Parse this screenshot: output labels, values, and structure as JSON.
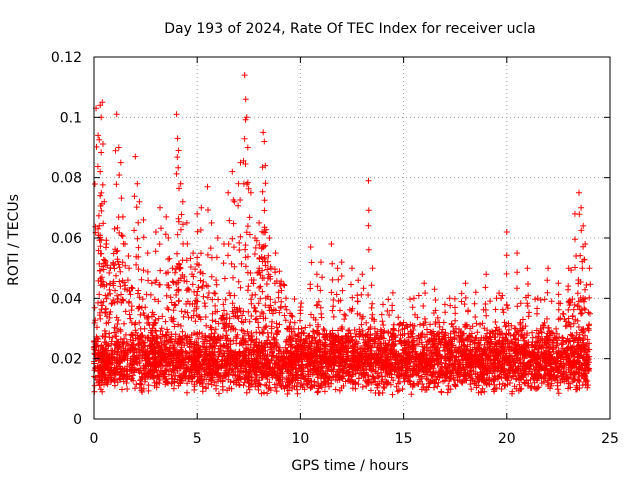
{
  "chart_data": {
    "type": "scatter",
    "title": "Day 193 of 2024, Rate Of TEC Index for receiver ucla",
    "xlabel": "GPS time / hours",
    "ylabel": "ROTI / TECUs",
    "xlim": [
      0,
      25
    ],
    "ylim": [
      0,
      0.12
    ],
    "x_ticks": [
      0,
      5,
      10,
      15,
      20,
      25
    ],
    "x_tick_labels": [
      "0",
      "5",
      "10",
      "15",
      "20",
      "25"
    ],
    "y_ticks": [
      0,
      0.02,
      0.04,
      0.06,
      0.08,
      0.1,
      0.12
    ],
    "y_tick_labels": [
      "0",
      "0.02",
      "0.04",
      "0.06",
      "0.08",
      "0.1",
      "0.12"
    ],
    "grid": true,
    "marker": "plus",
    "color": "#ff0000",
    "series": [
      {
        "name": "ROTI",
        "envelope_note": "Dense point cloud; baseline ~0.008-0.03 TECU all day; bursts above listed as sampled points",
        "points": [
          [
            0.1,
            0.103
          ],
          [
            0.2,
            0.094
          ],
          [
            0.3,
            0.104
          ],
          [
            0.35,
            0.1
          ],
          [
            0.4,
            0.105
          ],
          [
            0.3,
            0.082
          ],
          [
            0.3,
            0.074
          ],
          [
            0.5,
            0.072
          ],
          [
            0.2,
            0.063
          ],
          [
            0.6,
            0.058
          ],
          [
            0.8,
            0.05
          ],
          [
            1.0,
            0.063
          ],
          [
            1.1,
            0.101
          ],
          [
            1.2,
            0.09
          ],
          [
            1.3,
            0.085
          ],
          [
            1.4,
            0.067
          ],
          [
            1.5,
            0.058
          ],
          [
            1.7,
            0.05
          ],
          [
            2.0,
            0.087
          ],
          [
            2.1,
            0.078
          ],
          [
            2.2,
            0.072
          ],
          [
            2.4,
            0.066
          ],
          [
            2.6,
            0.055
          ],
          [
            2.8,
            0.045
          ],
          [
            3.0,
            0.062
          ],
          [
            3.2,
            0.07
          ],
          [
            3.5,
            0.067
          ],
          [
            3.6,
            0.06
          ],
          [
            3.8,
            0.05
          ],
          [
            4.0,
            0.101
          ],
          [
            4.05,
            0.093
          ],
          [
            4.1,
            0.089
          ],
          [
            4.2,
            0.078
          ],
          [
            4.3,
            0.072
          ],
          [
            4.5,
            0.065
          ],
          [
            4.8,
            0.055
          ],
          [
            5.0,
            0.068
          ],
          [
            5.2,
            0.07
          ],
          [
            5.5,
            0.077
          ],
          [
            5.7,
            0.065
          ],
          [
            6.0,
            0.06
          ],
          [
            6.3,
            0.058
          ],
          [
            6.5,
            0.075
          ],
          [
            6.7,
            0.082
          ],
          [
            6.8,
            0.072
          ],
          [
            7.0,
            0.078
          ],
          [
            7.1,
            0.085
          ],
          [
            7.3,
            0.114
          ],
          [
            7.35,
            0.106
          ],
          [
            7.4,
            0.1
          ],
          [
            7.45,
            0.09
          ],
          [
            7.6,
            0.075
          ],
          [
            7.8,
            0.06
          ],
          [
            8.0,
            0.065
          ],
          [
            8.2,
            0.095
          ],
          [
            8.25,
            0.092
          ],
          [
            8.3,
            0.084
          ],
          [
            8.5,
            0.06
          ],
          [
            8.8,
            0.055
          ],
          [
            9.0,
            0.045
          ],
          [
            9.3,
            0.04
          ],
          [
            9.5,
            0.035
          ],
          [
            10.0,
            0.035
          ],
          [
            10.5,
            0.057
          ],
          [
            10.8,
            0.048
          ],
          [
            11.0,
            0.052
          ],
          [
            11.5,
            0.058
          ],
          [
            11.8,
            0.05
          ],
          [
            12.0,
            0.052
          ],
          [
            12.5,
            0.05
          ],
          [
            12.8,
            0.046
          ],
          [
            13.0,
            0.048
          ],
          [
            13.3,
            0.079
          ],
          [
            13.5,
            0.05
          ],
          [
            14.0,
            0.038
          ],
          [
            14.5,
            0.03
          ],
          [
            15.0,
            0.032
          ],
          [
            15.5,
            0.04
          ],
          [
            16.0,
            0.045
          ],
          [
            16.5,
            0.043
          ],
          [
            17.0,
            0.038
          ],
          [
            17.5,
            0.035
          ],
          [
            18.0,
            0.045
          ],
          [
            18.5,
            0.042
          ],
          [
            19.0,
            0.048
          ],
          [
            19.5,
            0.04
          ],
          [
            20.0,
            0.062
          ],
          [
            20.5,
            0.055
          ],
          [
            21.0,
            0.05
          ],
          [
            21.5,
            0.04
          ],
          [
            22.0,
            0.05
          ],
          [
            22.5,
            0.045
          ],
          [
            23.0,
            0.05
          ],
          [
            23.3,
            0.068
          ],
          [
            23.5,
            0.075
          ],
          [
            23.6,
            0.07
          ],
          [
            23.7,
            0.064
          ],
          [
            23.8,
            0.058
          ],
          [
            24.0,
            0.05
          ]
        ]
      }
    ]
  }
}
